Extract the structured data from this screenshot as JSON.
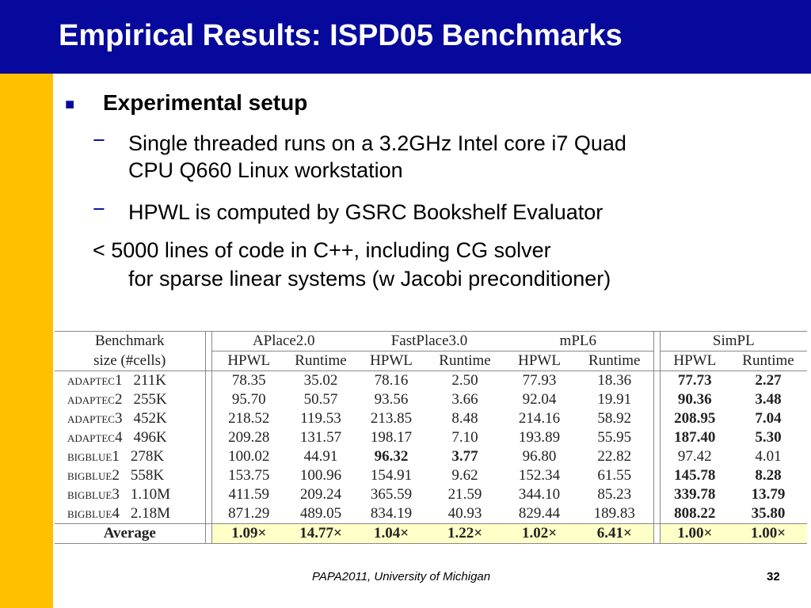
{
  "slide": {
    "title": "Empirical Results: ISPD05 Benchmarks",
    "bullet_marker": "■",
    "bullet": "Experimental setup",
    "dash": "−",
    "sub1_line1": "Single threaded runs on a 3.2GHz Intel core i7 Quad",
    "sub1_line2": "CPU Q660 Linux workstation",
    "sub2": "HPWL is computed by GSRC Bookshelf Evaluator",
    "plain_line1": "< 5000 lines of code in C++, including CG solver",
    "plain_line2": "for sparse linear systems (w Jacobi preconditioner)",
    "footer": "PAPA2011, University of Michigan",
    "page_number": "32",
    "colors": {
      "title_bar": "#06099b",
      "left_bar": "#ffc000",
      "avg_highlight": "#ffffc8"
    }
  },
  "table": {
    "head1": "Benchmark",
    "head2": "size (#cells)",
    "groups": [
      "APlace2.0",
      "FastPlace3.0",
      "mPL6",
      "SimPL"
    ],
    "sub_hpwl": "HPWL",
    "sub_runtime": "Runtime",
    "rows": [
      {
        "name": "adaptec1",
        "size": "211K",
        "v": [
          "78.35",
          "35.02",
          "78.16",
          "2.50",
          "77.93",
          "18.36",
          "77.73",
          "2.27"
        ]
      },
      {
        "name": "adaptec2",
        "size": "255K",
        "v": [
          "95.70",
          "50.57",
          "93.56",
          "3.66",
          "92.04",
          "19.91",
          "90.36",
          "3.48"
        ]
      },
      {
        "name": "adaptec3",
        "size": "452K",
        "v": [
          "218.52",
          "119.53",
          "213.85",
          "8.48",
          "214.16",
          "58.92",
          "208.95",
          "7.04"
        ]
      },
      {
        "name": "adaptec4",
        "size": "496K",
        "v": [
          "209.28",
          "131.57",
          "198.17",
          "7.10",
          "193.89",
          "55.95",
          "187.40",
          "5.30"
        ]
      },
      {
        "name": "bigblue1",
        "size": "278K",
        "v": [
          "100.02",
          "44.91",
          "96.32",
          "3.77",
          "96.80",
          "22.82",
          "97.42",
          "4.01"
        ]
      },
      {
        "name": "bigblue2",
        "size": "558K",
        "v": [
          "153.75",
          "100.96",
          "154.91",
          "9.62",
          "152.34",
          "61.55",
          "145.78",
          "8.28"
        ]
      },
      {
        "name": "bigblue3",
        "size": "1.10M",
        "v": [
          "411.59",
          "209.24",
          "365.59",
          "21.59",
          "344.10",
          "85.23",
          "339.78",
          "13.79"
        ]
      },
      {
        "name": "bigblue4",
        "size": "2.18M",
        "v": [
          "871.29",
          "489.05",
          "834.19",
          "40.93",
          "829.44",
          "189.83",
          "808.22",
          "35.80"
        ]
      }
    ],
    "average_label": "Average",
    "average": [
      "1.09×",
      "14.77×",
      "1.04×",
      "1.22×",
      "1.02×",
      "6.41×",
      "1.00×",
      "1.00×"
    ]
  }
}
